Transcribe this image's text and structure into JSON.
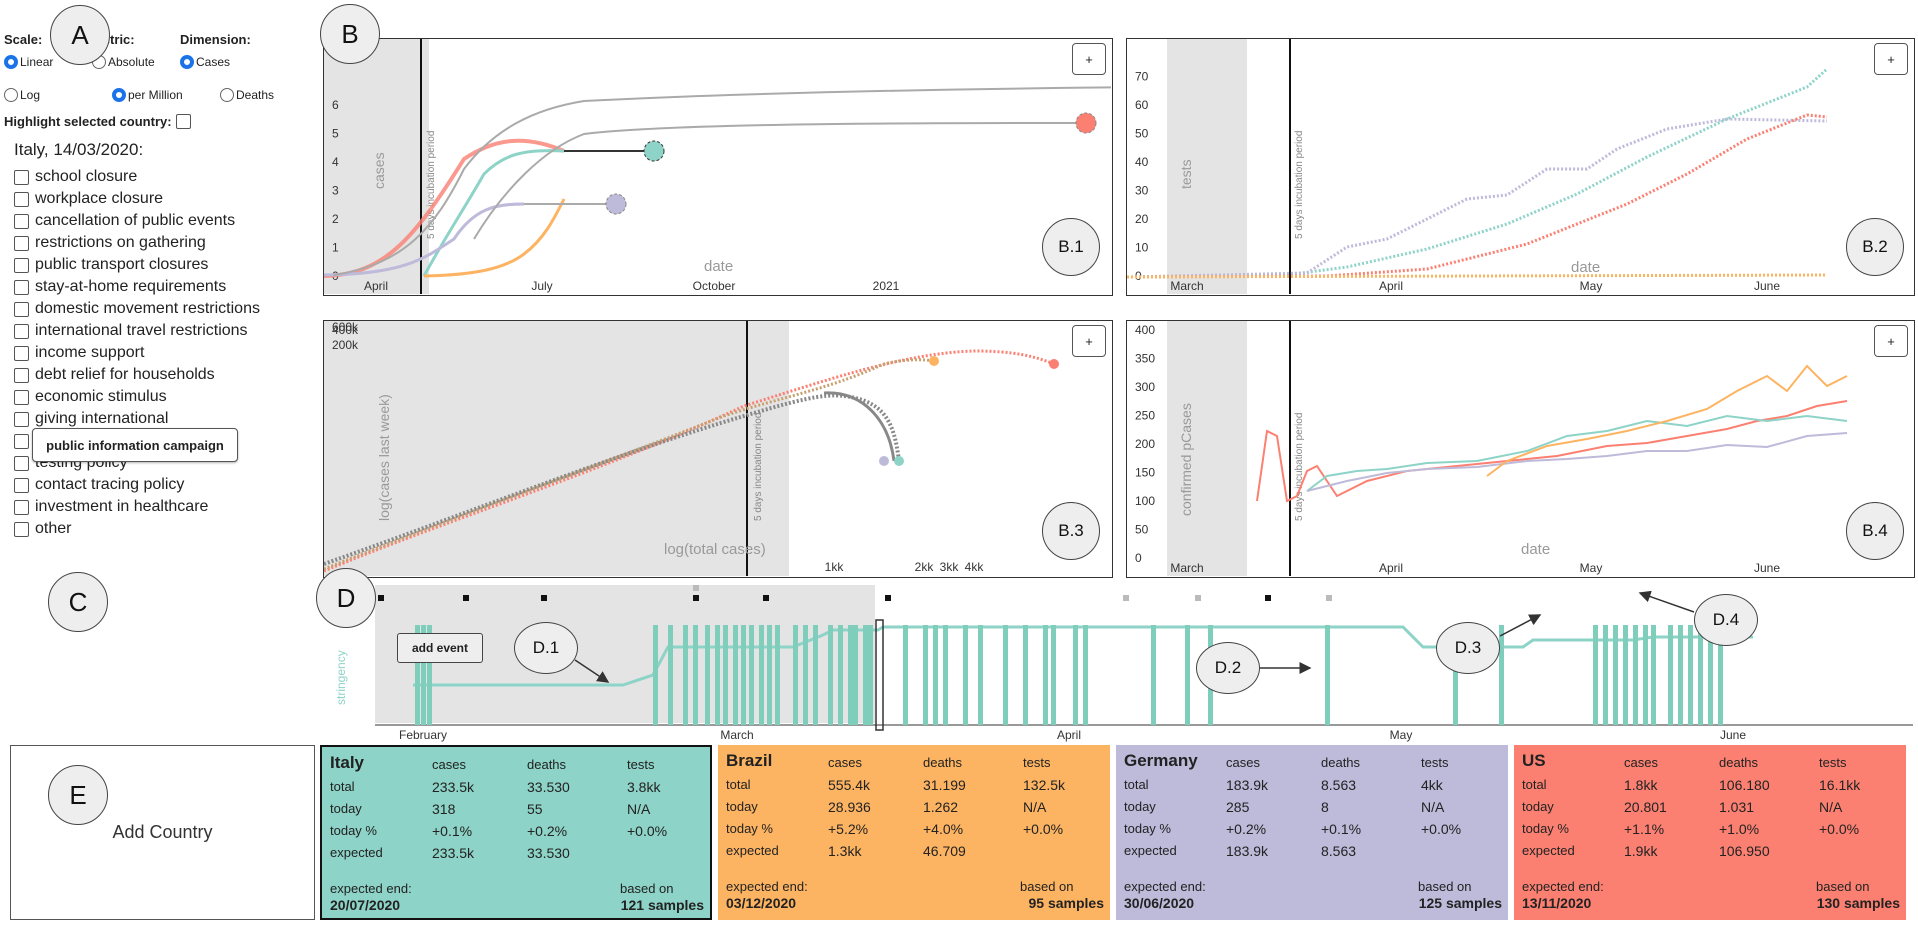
{
  "markers": {
    "A": "A",
    "B": "B",
    "C": "C",
    "D": "D",
    "E": "E",
    "B1": "B.1",
    "B2": "B.2",
    "B3": "B.3",
    "B4": "B.4",
    "D1": "D.1",
    "D2": "D.2",
    "D3": "D.3",
    "D4": "D.4"
  },
  "controls": {
    "scale_label": "Scale:",
    "metric_label": "Metric:",
    "dimension_label": "Dimension:",
    "linear": "Linear",
    "log": "Log",
    "absolute": "Absolute",
    "per_million": "per Million",
    "cases": "Cases",
    "deaths": "Deaths",
    "highlight_label": "Highlight selected country:",
    "context": "Italy, 14/03/2020:",
    "tooltip": "public information campaign",
    "measures": [
      "school closure",
      "workplace closure",
      "cancellation of public events",
      "restrictions on gathering",
      "public transport closures",
      "stay-at-home requirements",
      "domestic movement restrictions",
      "international travel restrictions",
      "income support",
      "debt relief for households",
      "economic stimulus",
      "giving international",
      "",
      "testing policy",
      "contact tracing policy",
      "investment in healthcare",
      "other"
    ]
  },
  "colors": {
    "italy": "#8dd3c7",
    "brazil": "#fdb462",
    "germany": "#bebada",
    "us": "#fb8072",
    "grey": "#e4e4e4",
    "stringency": "#7fcdbb"
  },
  "charts": {
    "plus": "+",
    "incubation": "5 days incubation period",
    "b1": {
      "ylabel": "cases",
      "xlabel": "date",
      "yticks": [
        "0",
        "1",
        "2",
        "3",
        "4",
        "5",
        "6"
      ],
      "xticks": [
        "April",
        "July",
        "October",
        "2021"
      ]
    },
    "b2": {
      "ylabel": "tests",
      "xlabel": "date",
      "yticks": [
        "0",
        "10",
        "20",
        "30",
        "40",
        "50",
        "60",
        "70"
      ],
      "xticks": [
        "March",
        "April",
        "May",
        "June"
      ]
    },
    "b3": {
      "ylabel": "log(cases last week)",
      "xlabel": "log(total cases)",
      "yticks": [
        "600k",
        "400k",
        "200k"
      ],
      "xticks": [
        "1kk",
        "2kk",
        "3kk",
        "4kk"
      ]
    },
    "b4": {
      "ylabel": "confirmed pCases",
      "xlabel": "date",
      "yticks": [
        "0",
        "50",
        "100",
        "150",
        "200",
        "250",
        "300",
        "350",
        "400"
      ],
      "xticks": [
        "March",
        "April",
        "May",
        "June"
      ]
    },
    "timeline": {
      "ylabel": "stringency",
      "add_event": "add event",
      "xticks": [
        "February",
        "March",
        "April",
        "May",
        "June"
      ]
    }
  },
  "add_country": "Add Country",
  "card_headers": {
    "cases": "cases",
    "deaths": "deaths",
    "tests": "tests",
    "total": "total",
    "today": "today",
    "today_pct": "today %",
    "expected": "expected",
    "expected_end": "expected end:",
    "based_on": "based on"
  },
  "countries": [
    {
      "name": "Italy",
      "total": [
        "233.5k",
        "33.530",
        "3.8kk"
      ],
      "today": [
        "318",
        "55",
        "N/A"
      ],
      "today_pct": [
        "+0.1%",
        "+0.2%",
        "+0.0%"
      ],
      "expected": [
        "233.5k",
        "33.530",
        ""
      ],
      "end": "20/07/2020",
      "samples": "121 samples"
    },
    {
      "name": "Brazil",
      "total": [
        "555.4k",
        "31.199",
        "132.5k"
      ],
      "today": [
        "28.936",
        "1.262",
        "N/A"
      ],
      "today_pct": [
        "+5.2%",
        "+4.0%",
        "+0.0%"
      ],
      "expected": [
        "1.3kk",
        "46.709",
        ""
      ],
      "end": "03/12/2020",
      "samples": "95 samples"
    },
    {
      "name": "Germany",
      "total": [
        "183.9k",
        "8.563",
        "4kk"
      ],
      "today": [
        "285",
        "8",
        "N/A"
      ],
      "today_pct": [
        "+0.2%",
        "+0.1%",
        "+0.0%"
      ],
      "expected": [
        "183.9k",
        "8.563",
        ""
      ],
      "end": "30/06/2020",
      "samples": "125 samples"
    },
    {
      "name": "US",
      "total": [
        "1.8kk",
        "106.180",
        "16.1kk"
      ],
      "today": [
        "20.801",
        "1.031",
        "N/A"
      ],
      "today_pct": [
        "+1.1%",
        "+1.0%",
        "+0.0%"
      ],
      "expected": [
        "1.9kk",
        "106.950",
        ""
      ],
      "end": "13/11/2020",
      "samples": "130 samples"
    }
  ]
}
